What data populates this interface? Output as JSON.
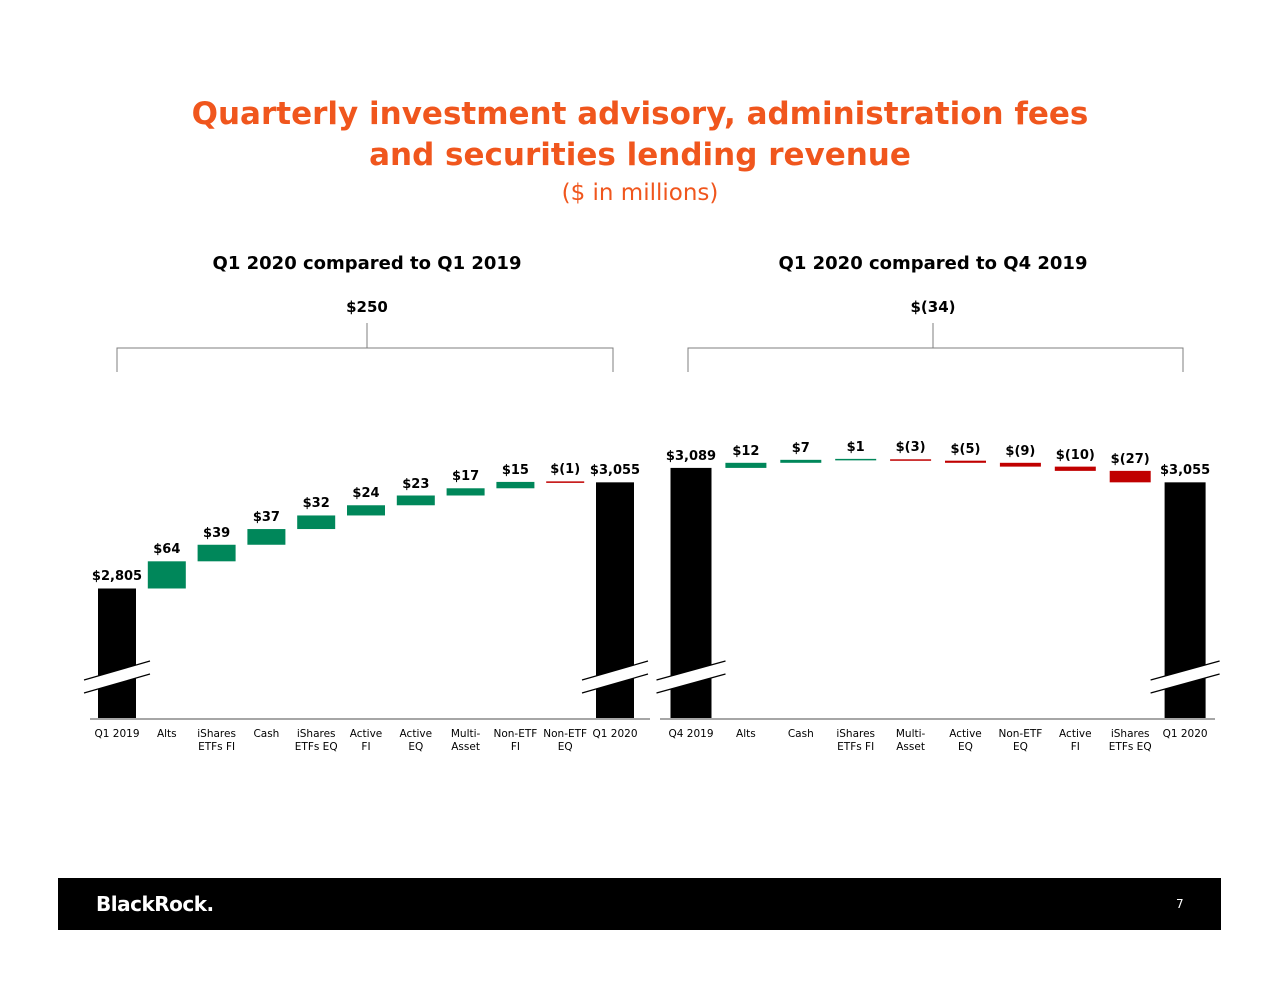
{
  "title_lines": [
    "Quarterly investment advisory, administration fees",
    "and securities lending revenue"
  ],
  "subtitle": "($ in millions)",
  "footer": {
    "logo": "BlackRock.",
    "page": "7"
  },
  "chart_data": [
    {
      "type": "waterfall",
      "title": "Q1 2020 compared to Q1 2019",
      "change_label": "$250",
      "categories": [
        "Q1 2019",
        "Alts",
        "iShares\nETFs FI",
        "Cash",
        "iShares\nETFs EQ",
        "Active\nFI",
        "Active\nEQ",
        "Multi-\nAsset",
        "Non-ETF\nFI",
        "Non-ETF\nEQ",
        "Q1 2020"
      ],
      "measure": [
        "absolute",
        "relative",
        "relative",
        "relative",
        "relative",
        "relative",
        "relative",
        "relative",
        "relative",
        "relative",
        "total"
      ],
      "values": [
        2805,
        64,
        39,
        37,
        32,
        24,
        23,
        17,
        15,
        -1,
        3055
      ],
      "value_labels": [
        "$2,805",
        "$64",
        "$39",
        "$37",
        "$32",
        "$24",
        "$23",
        "$17",
        "$15",
        "$(1)",
        "$3,055"
      ],
      "ylim": [
        2500,
        3150
      ],
      "increase_color": "#00875a",
      "decrease_color": "#c00000",
      "total_color": "#000000"
    },
    {
      "type": "waterfall",
      "title": "Q1 2020 compared to Q4 2019",
      "change_label": "$(34)",
      "categories": [
        "Q4 2019",
        "Alts",
        "Cash",
        "iShares\nETFs FI",
        "Multi-\nAsset",
        "Active\nEQ",
        "Non-ETF\nEQ",
        "Active\nFI",
        "iShares\nETFs EQ",
        "Q1 2020"
      ],
      "measure": [
        "absolute",
        "relative",
        "relative",
        "relative",
        "relative",
        "relative",
        "relative",
        "relative",
        "relative",
        "total"
      ],
      "values": [
        3089,
        12,
        7,
        1,
        -3,
        -5,
        -9,
        -10,
        -27,
        3055
      ],
      "value_labels": [
        "$3,089",
        "$12",
        "$7",
        "$1",
        "$(3)",
        "$(5)",
        "$(9)",
        "$(10)",
        "$(27)",
        "$3,055"
      ],
      "ylim": [
        2500,
        3150
      ],
      "increase_color": "#00875a",
      "decrease_color": "#c00000",
      "total_color": "#000000"
    }
  ]
}
